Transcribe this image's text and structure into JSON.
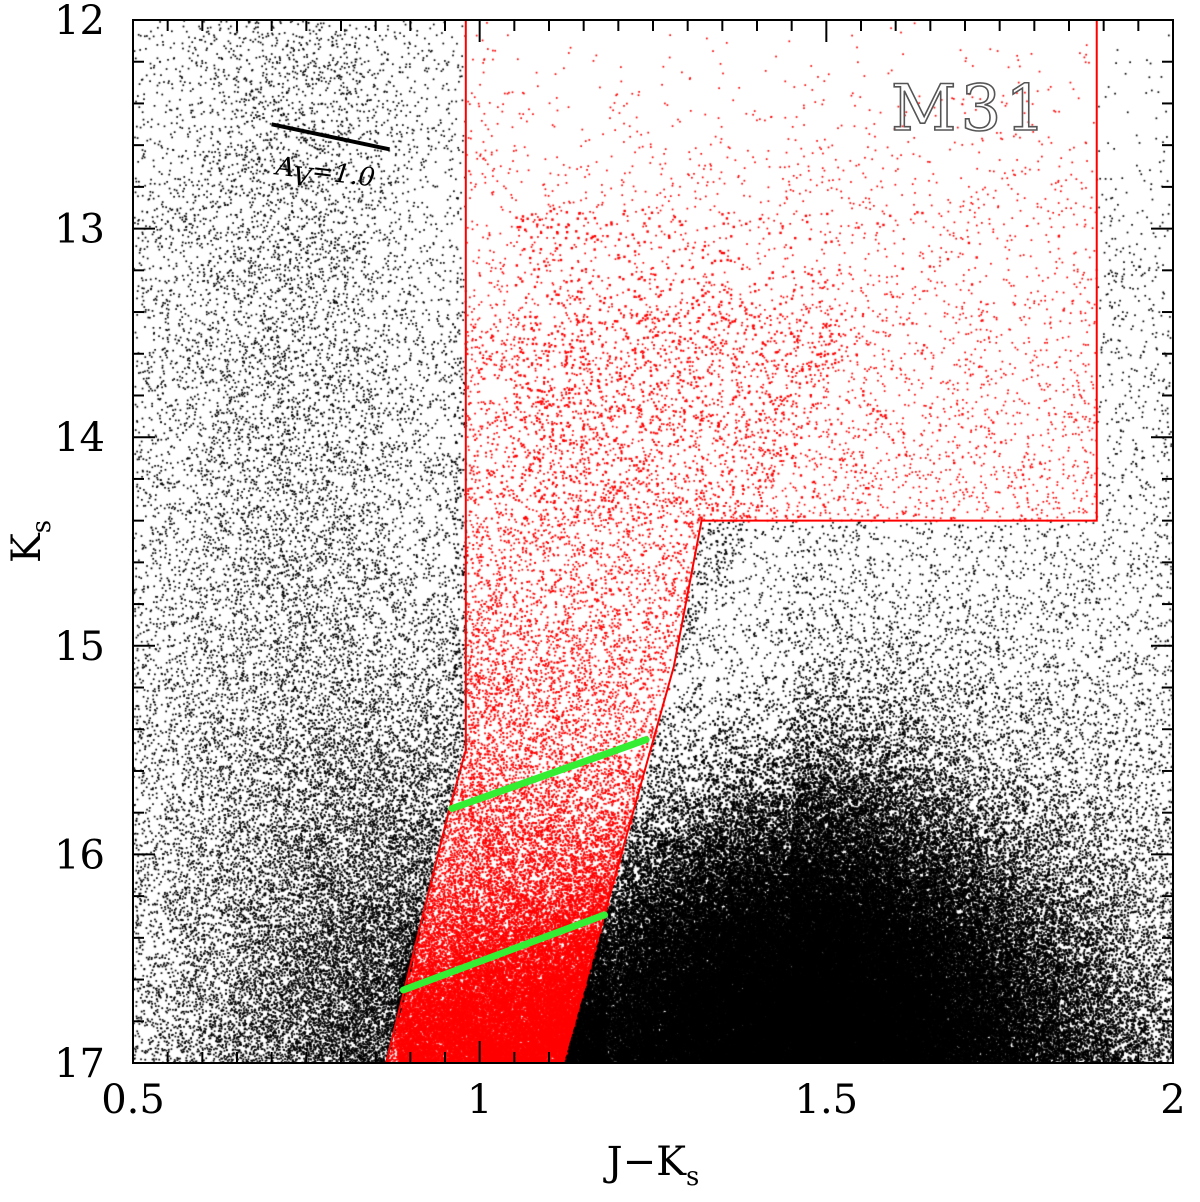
{
  "chart_data": {
    "type": "scatter",
    "title": "",
    "panel_label": "M31",
    "xlabel_main": "J−K",
    "xlabel_sub": "s",
    "ylabel_main": "K",
    "ylabel_sub": "s",
    "xlim": [
      0.5,
      2.0
    ],
    "ylim": [
      17.0,
      12.0
    ],
    "y_inverted": true,
    "xticks": [
      0.5,
      1.0,
      1.5,
      2.0
    ],
    "xtick_labels": [
      "0.5",
      "1",
      "1.5",
      "2"
    ],
    "yticks": [
      12,
      13,
      14,
      15,
      16,
      17
    ],
    "ytick_labels": [
      "12",
      "13",
      "14",
      "15",
      "16",
      "17"
    ],
    "grid": false,
    "colors": {
      "field_stars": "#000000",
      "selected_stars": "#ff0000",
      "selection_box": "#ff0000",
      "reference_lines": "#33ee33",
      "reddening_vector": "#000000"
    },
    "reddening_vector": {
      "label_main": "A",
      "label_sub": "V",
      "label_rest": "=1.0",
      "x": [
        0.7,
        0.87
      ],
      "y": [
        12.5,
        12.62
      ]
    },
    "selection_region": {
      "x": [
        0.865,
        0.955,
        0.98,
        0.98,
        1.89,
        1.89,
        1.32,
        1.28,
        1.12
      ],
      "y": [
        17.0,
        15.8,
        15.5,
        12.0,
        12.0,
        14.4,
        14.4,
        15.1,
        17.0
      ]
    },
    "green_lines": [
      {
        "x": [
          0.96,
          1.24
        ],
        "y": [
          15.78,
          15.45
        ]
      },
      {
        "x": [
          0.89,
          1.18
        ],
        "y": [
          16.65,
          16.29
        ]
      }
    ],
    "series": [
      {
        "label": "field stars (black)",
        "distribution": "dense red-giant plume centred near J-Ks 1.45, Ks 16.6, plus sparse foreground in all regions",
        "approx_points_drawn": 60000
      },
      {
        "label": "selected stars (red)",
        "distribution": "stars falling inside the red selection region",
        "approx_points_drawn": 9000
      }
    ]
  }
}
